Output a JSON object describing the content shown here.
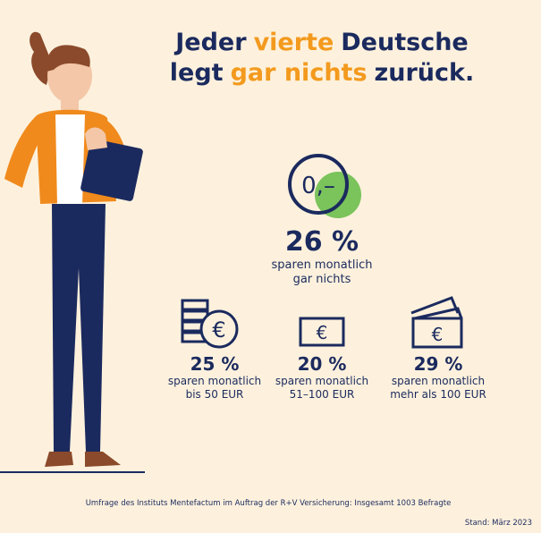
{
  "header": {
    "title": {
      "lines": [
        [
          {
            "text": "Jeder",
            "highlight": false
          },
          {
            "text": "vierte",
            "highlight": true
          },
          {
            "text": "Deutsche",
            "highlight": false
          }
        ],
        [
          {
            "text": "legt",
            "highlight": false
          },
          {
            "text": "gar nichts",
            "highlight": true
          },
          {
            "text": "zurück.",
            "highlight": false
          }
        ]
      ]
    }
  },
  "main_stat": {
    "icon_text": "0,–",
    "value": "26 %",
    "label_lines": [
      "sparen monatlich",
      "gar nichts"
    ]
  },
  "currency_symbol": "€",
  "stats": [
    {
      "value": "25 %",
      "label_lines": [
        "sparen monatlich",
        "bis 50 EUR"
      ]
    },
    {
      "value": "20 %",
      "label_lines": [
        "sparen monatlich",
        "51–100 EUR"
      ]
    },
    {
      "value": "29 %",
      "label_lines": [
        "sparen monatlich",
        "mehr als 100 EUR"
      ]
    }
  ],
  "footer": {
    "source": "Umfrage des Instituts Mentefactum im Auftrag der R+V Versicherung: Insgesamt 1003 Befragte",
    "date": "Stand: März 2023"
  }
}
